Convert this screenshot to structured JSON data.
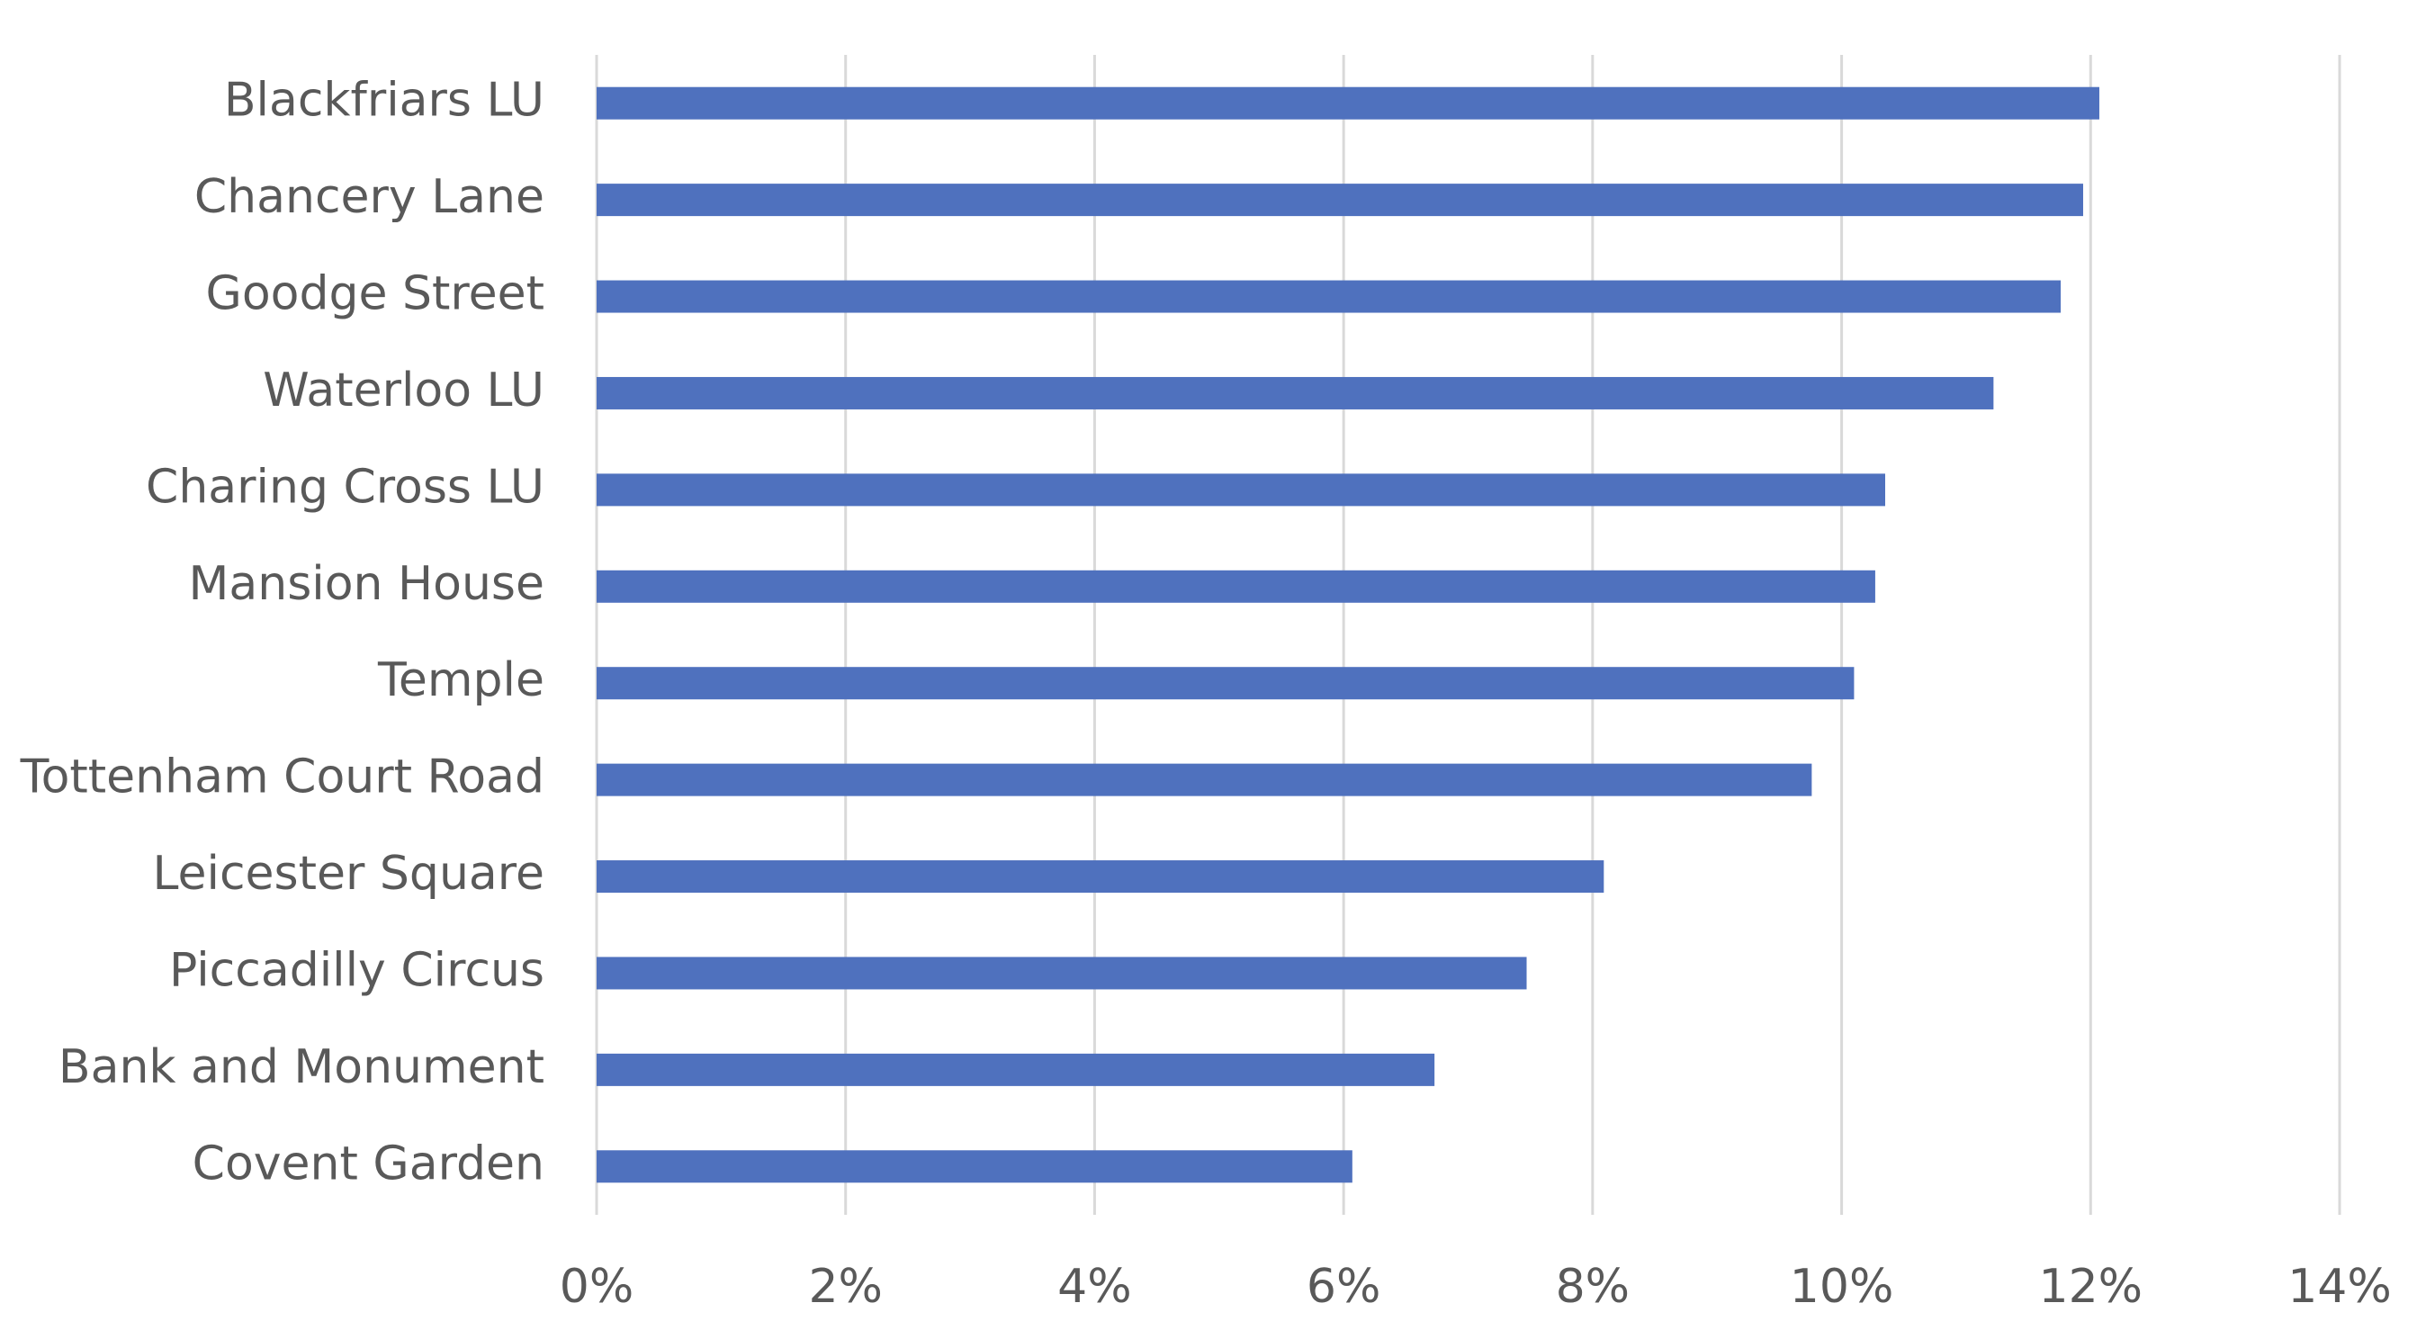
{
  "chart_data": {
    "type": "hbar",
    "categories": [
      "Blackfriars LU",
      "Chancery Lane",
      "Goodge Street",
      "Waterloo LU",
      "Charing Cross LU",
      "Mansion House",
      "Temple",
      "Tottenham Court Road",
      "Leicester Square",
      "Piccadilly Circus",
      "Bank and Monument",
      "Covent Garden"
    ],
    "values": [
      12.07,
      11.94,
      11.76,
      11.22,
      10.35,
      10.27,
      10.1,
      9.76,
      8.09,
      7.47,
      6.73,
      6.07
    ],
    "color": "#4f71be",
    "xlim": [
      0,
      14
    ],
    "xticks": [
      {
        "value": 0,
        "label": "0%"
      },
      {
        "value": 2,
        "label": "2%"
      },
      {
        "value": 4,
        "label": "4%"
      },
      {
        "value": 6,
        "label": "6%"
      },
      {
        "value": 8,
        "label": "8%"
      },
      {
        "value": 10,
        "label": "10%"
      },
      {
        "value": 12,
        "label": "12%"
      },
      {
        "value": 14,
        "label": "14%"
      }
    ],
    "grid": true
  }
}
